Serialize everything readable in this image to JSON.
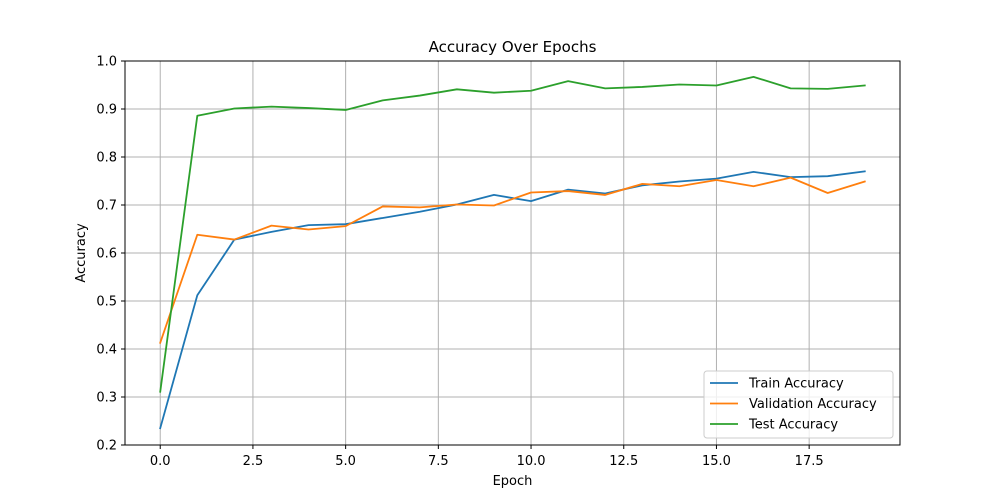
{
  "chart_data": {
    "type": "line",
    "title": "Accuracy Over Epochs",
    "xlabel": "Epoch",
    "ylabel": "Accuracy",
    "xlim": [
      -0.95,
      19.95
    ],
    "ylim": [
      0.2,
      1.0
    ],
    "grid": true,
    "legend_position": "bottom-right",
    "x": [
      0,
      1,
      2,
      3,
      4,
      5,
      6,
      7,
      8,
      9,
      10,
      11,
      12,
      13,
      14,
      15,
      16,
      17,
      18,
      19
    ],
    "x_ticks": [
      0.0,
      2.5,
      5.0,
      7.5,
      10.0,
      12.5,
      15.0,
      17.5
    ],
    "x_tick_labels": [
      "0.0",
      "2.5",
      "5.0",
      "7.5",
      "10.0",
      "12.5",
      "15.0",
      "17.5"
    ],
    "y_ticks": [
      0.2,
      0.3,
      0.4,
      0.5,
      0.6,
      0.7,
      0.8,
      0.9,
      1.0
    ],
    "y_tick_labels": [
      "0.2",
      "0.3",
      "0.4",
      "0.5",
      "0.6",
      "0.7",
      "0.8",
      "0.9",
      "1.0"
    ],
    "series": [
      {
        "name": "Train Accuracy",
        "color": "#1f77b4",
        "values": [
          0.235,
          0.512,
          0.628,
          0.644,
          0.658,
          0.66,
          0.673,
          0.686,
          0.701,
          0.721,
          0.708,
          0.732,
          0.724,
          0.741,
          0.749,
          0.755,
          0.769,
          0.758,
          0.76,
          0.77
        ]
      },
      {
        "name": "Validation Accuracy",
        "color": "#ff7f0e",
        "values": [
          0.413,
          0.638,
          0.628,
          0.657,
          0.649,
          0.656,
          0.697,
          0.695,
          0.701,
          0.699,
          0.726,
          0.729,
          0.721,
          0.744,
          0.739,
          0.752,
          0.739,
          0.757,
          0.725,
          0.749
        ]
      },
      {
        "name": "Test Accuracy",
        "color": "#2ca02c",
        "values": [
          0.311,
          0.886,
          0.901,
          0.905,
          0.902,
          0.898,
          0.918,
          0.928,
          0.941,
          0.934,
          0.938,
          0.958,
          0.943,
          0.946,
          0.951,
          0.949,
          0.967,
          0.943,
          0.942,
          0.949
        ]
      }
    ]
  }
}
